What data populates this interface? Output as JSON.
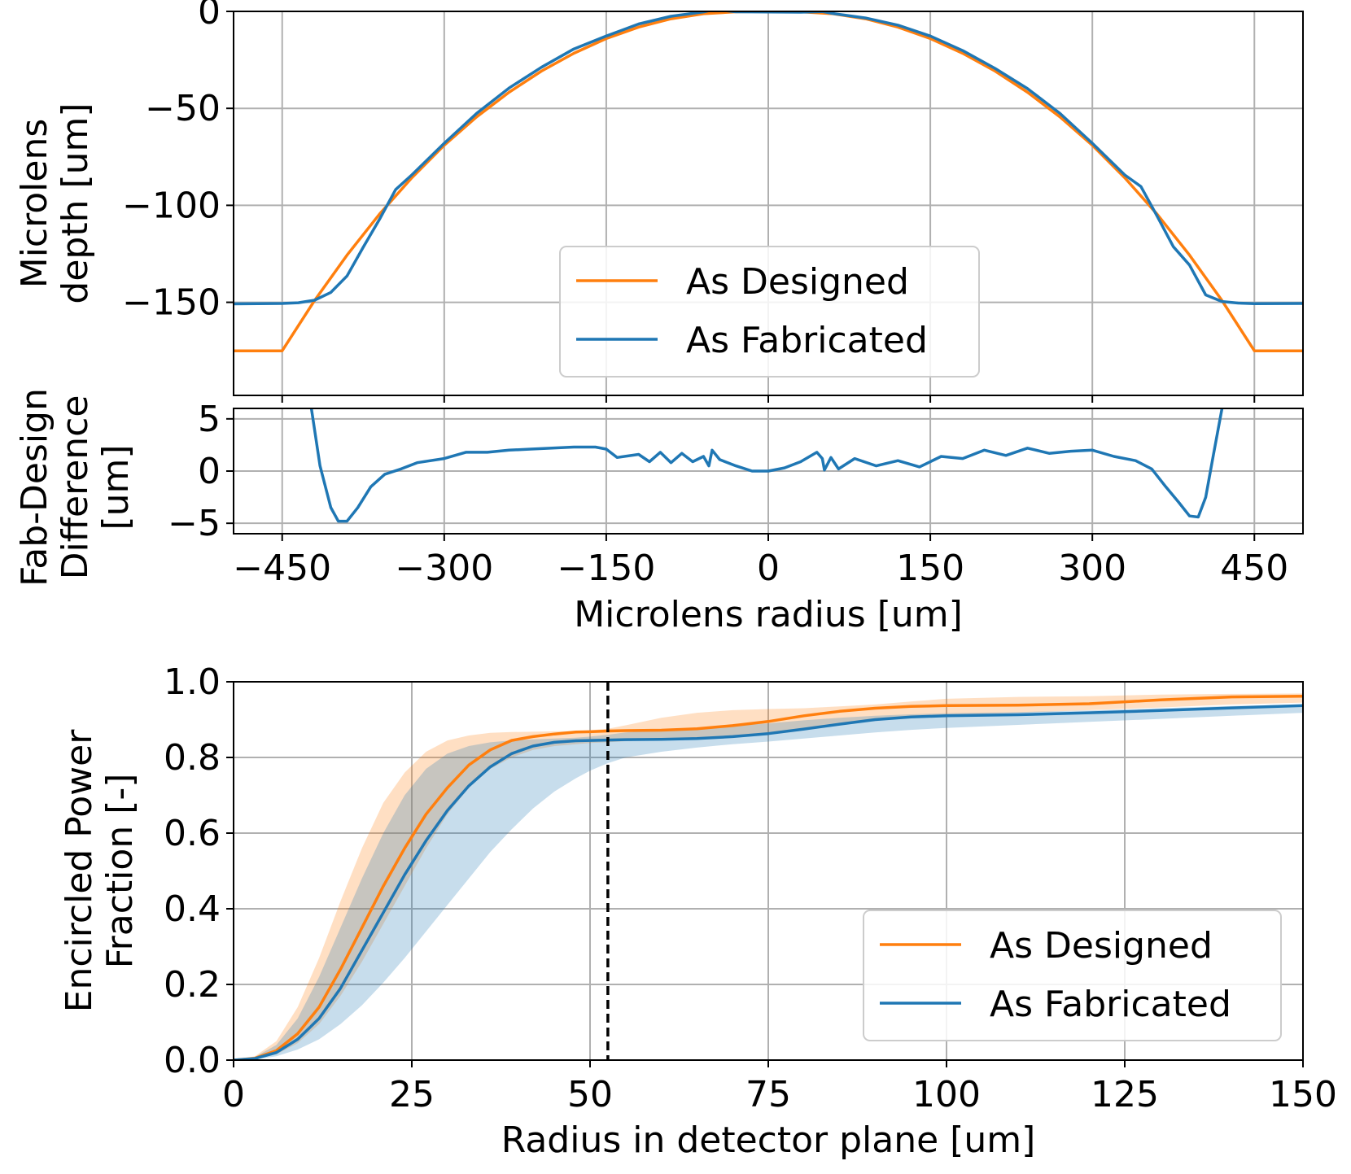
{
  "colors": {
    "designed": "#ff7f0e",
    "fabricated": "#1f77b4"
  },
  "chart_data": [
    {
      "type": "line",
      "panel": "top",
      "xlim": [
        -495,
        495
      ],
      "ylim": [
        -198,
        0
      ],
      "x_ticks": [
        -450,
        -300,
        -150,
        0,
        150,
        300,
        450
      ],
      "y_ticks": [
        0,
        -50,
        -100,
        -150
      ],
      "y_tick_labels": [
        "0",
        "−50",
        "−100",
        "−150"
      ],
      "ylabel_lines": [
        "Microlens",
        "depth [um]"
      ],
      "grid": true,
      "legend": {
        "placement": "lower-center",
        "entries": [
          "As Designed",
          "As Fabricated"
        ]
      },
      "series": [
        {
          "name": "As Designed",
          "color": "#ff7f0e",
          "x": [
            -495,
            -450,
            -420,
            -390,
            -360,
            -330,
            -300,
            -270,
            -240,
            -210,
            -180,
            -150,
            -120,
            -90,
            -60,
            -30,
            0,
            30,
            60,
            90,
            120,
            150,
            180,
            210,
            240,
            270,
            300,
            330,
            360,
            390,
            420,
            450,
            495
          ],
          "y": [
            -175,
            -175,
            -149.1,
            -125.7,
            -104.6,
            -85.8,
            -69,
            -54.4,
            -41.7,
            -30.8,
            -21.6,
            -14,
            -8.1,
            -3.8,
            -1.2,
            -0.2,
            0,
            -0.2,
            -1.2,
            -3.8,
            -8.1,
            -14,
            -21.6,
            -30.8,
            -41.7,
            -54.4,
            -69,
            -85.8,
            -104.6,
            -125.7,
            -149.1,
            -175,
            -175
          ]
        },
        {
          "name": "As Fabricated",
          "color": "#1f77b4",
          "x": [
            -495,
            -450,
            -435,
            -420,
            -405,
            -390,
            -375,
            -360,
            -345,
            -330,
            -300,
            -270,
            -240,
            -210,
            -180,
            -150,
            -120,
            -90,
            -60,
            -50,
            -30,
            0,
            30,
            50,
            60,
            90,
            120,
            150,
            180,
            210,
            240,
            270,
            300,
            330,
            345,
            360,
            375,
            390,
            405,
            420,
            435,
            450,
            495
          ],
          "y": [
            -150.8,
            -150.6,
            -150.2,
            -148.9,
            -144.9,
            -136.4,
            -121.6,
            -107.3,
            -91.9,
            -84.3,
            -68,
            -52.6,
            -39.5,
            -28.8,
            -19.4,
            -12.7,
            -6.5,
            -2.5,
            -0.3,
            1,
            -0.2,
            -0.3,
            -0.4,
            -0.1,
            -1.1,
            -3.4,
            -7.1,
            -12.7,
            -20.2,
            -29.4,
            -39.8,
            -52.6,
            -68,
            -84.3,
            -90.3,
            -105.6,
            -121.3,
            -130.8,
            -146.2,
            -149.6,
            -150.4,
            -150.7,
            -150.6
          ]
        }
      ]
    },
    {
      "type": "line",
      "panel": "middle",
      "xlim": [
        -495,
        495
      ],
      "ylim": [
        -6,
        6
      ],
      "x_ticks": [
        -450,
        -300,
        -150,
        0,
        150,
        300,
        450
      ],
      "x_tick_labels": [
        "−450",
        "−300",
        "−150",
        "0",
        "150",
        "300",
        "450"
      ],
      "y_ticks": [
        5,
        0,
        -5
      ],
      "y_tick_labels": [
        "5",
        "0",
        "−5"
      ],
      "xlabel": "Microlens radius [um]",
      "ylabel_lines": [
        "Fab-Design",
        "Difference",
        "[um]"
      ],
      "grid": true,
      "series": [
        {
          "name": "Fab-Design Difference",
          "color": "#1f77b4",
          "x": [
            -423,
            -415,
            -405,
            -398,
            -390,
            -380,
            -368,
            -355,
            -340,
            -325,
            -300,
            -280,
            -260,
            -240,
            -220,
            -200,
            -180,
            -160,
            -150,
            -140,
            -120,
            -110,
            -100,
            -90,
            -80,
            -70,
            -60,
            -55,
            -52,
            -45,
            -30,
            -15,
            0,
            15,
            30,
            45,
            50,
            52,
            58,
            65,
            80,
            100,
            120,
            140,
            160,
            180,
            200,
            220,
            240,
            260,
            280,
            300,
            320,
            340,
            355,
            368,
            380,
            390,
            398,
            405,
            412,
            420
          ],
          "y": [
            6,
            0.5,
            -3.5,
            -4.8,
            -4.8,
            -3.5,
            -1.5,
            -0.3,
            0.2,
            0.8,
            1.2,
            1.8,
            1.8,
            2,
            2.1,
            2.2,
            2.3,
            2.3,
            2.1,
            1.3,
            1.6,
            0.9,
            1.8,
            0.8,
            1.7,
            0.9,
            1.4,
            0.5,
            2,
            1.1,
            0.5,
            0,
            0,
            0.3,
            0.9,
            1.8,
            1.2,
            0.1,
            1.3,
            0.2,
            1.2,
            0.5,
            1,
            0.4,
            1.4,
            1.2,
            2,
            1.5,
            2.2,
            1.7,
            1.9,
            2,
            1.4,
            1,
            0.2,
            -1.5,
            -3,
            -4.3,
            -4.4,
            -2.5,
            1.5,
            6
          ]
        }
      ]
    },
    {
      "type": "line",
      "panel": "bottom",
      "xlim": [
        0,
        150
      ],
      "ylim": [
        0,
        1
      ],
      "x_ticks": [
        0,
        25,
        50,
        75,
        100,
        125,
        150
      ],
      "y_ticks": [
        0,
        0.2,
        0.4,
        0.6,
        0.8,
        1
      ],
      "y_tick_labels": [
        "0.0",
        "0.2",
        "0.4",
        "0.6",
        "0.8",
        "1.0"
      ],
      "xlabel": "Radius in detector plane [um]",
      "ylabel_lines": [
        "Encircled Power",
        "Fraction [-]"
      ],
      "grid": true,
      "vline_x": 52.5,
      "legend": {
        "placement": "lower-right",
        "entries": [
          "As Designed",
          "As Fabricated"
        ]
      },
      "series": [
        {
          "name": "As Designed",
          "color": "#ff7f0e",
          "x": [
            0,
            3,
            6,
            9,
            12,
            15,
            18,
            21,
            24,
            27,
            30,
            33,
            36,
            39,
            42,
            45,
            48,
            50,
            52.5,
            55,
            60,
            65,
            70,
            75,
            80,
            85,
            90,
            95,
            100,
            110,
            120,
            130,
            140,
            150
          ],
          "y": [
            0,
            0.005,
            0.025,
            0.07,
            0.14,
            0.24,
            0.35,
            0.46,
            0.56,
            0.65,
            0.72,
            0.78,
            0.82,
            0.845,
            0.855,
            0.862,
            0.867,
            0.868,
            0.87,
            0.871,
            0.872,
            0.876,
            0.884,
            0.895,
            0.91,
            0.922,
            0.93,
            0.935,
            0.937,
            0.938,
            0.942,
            0.952,
            0.96,
            0.962
          ]
        },
        {
          "name": "As Fabricated",
          "color": "#1f77b4",
          "x": [
            0,
            3,
            6,
            9,
            12,
            15,
            18,
            21,
            24,
            27,
            30,
            33,
            36,
            39,
            42,
            45,
            48,
            50,
            52.5,
            55,
            60,
            65,
            70,
            75,
            80,
            85,
            90,
            95,
            100,
            110,
            120,
            130,
            140,
            150
          ],
          "y": [
            0,
            0.004,
            0.02,
            0.055,
            0.11,
            0.19,
            0.29,
            0.39,
            0.49,
            0.58,
            0.66,
            0.725,
            0.775,
            0.81,
            0.83,
            0.84,
            0.844,
            0.845,
            0.846,
            0.847,
            0.848,
            0.85,
            0.855,
            0.863,
            0.875,
            0.888,
            0.9,
            0.907,
            0.91,
            0.913,
            0.918,
            0.924,
            0.931,
            0.937
          ]
        },
        {
          "name": "As Designed range",
          "color": "#ff7f0e",
          "x": [
            0,
            3,
            6,
            9,
            12,
            15,
            18,
            21,
            24,
            27,
            30,
            33,
            36,
            39,
            42,
            45,
            48,
            50,
            52.5,
            55,
            60,
            65,
            70,
            75,
            80,
            85,
            90,
            95,
            100,
            110,
            120,
            130,
            140,
            150
          ],
          "y_upper": [
            0,
            0.01,
            0.05,
            0.14,
            0.27,
            0.42,
            0.56,
            0.68,
            0.76,
            0.815,
            0.845,
            0.858,
            0.865,
            0.867,
            0.868,
            0.869,
            0.87,
            0.872,
            0.876,
            0.885,
            0.905,
            0.918,
            0.925,
            0.928,
            0.93,
            0.935,
            0.94,
            0.948,
            0.955,
            0.96,
            0.962,
            0.966,
            0.968,
            0.969
          ],
          "y_lower": [
            0,
            0.003,
            0.015,
            0.045,
            0.095,
            0.17,
            0.26,
            0.36,
            0.46,
            0.56,
            0.65,
            0.72,
            0.77,
            0.8,
            0.82,
            0.83,
            0.835,
            0.838,
            0.84,
            0.843,
            0.848,
            0.852,
            0.858,
            0.865,
            0.875,
            0.89,
            0.9,
            0.908,
            0.912,
            0.918,
            0.925,
            0.932,
            0.94,
            0.945
          ]
        },
        {
          "name": "As Fabricated range",
          "color": "#1f77b4",
          "x": [
            0,
            3,
            6,
            9,
            12,
            15,
            18,
            21,
            24,
            27,
            30,
            33,
            36,
            39,
            42,
            45,
            48,
            50,
            52.5,
            55,
            60,
            65,
            70,
            75,
            80,
            85,
            90,
            95,
            100,
            110,
            120,
            130,
            140,
            150
          ],
          "y_upper": [
            0,
            0.008,
            0.04,
            0.11,
            0.22,
            0.35,
            0.48,
            0.6,
            0.7,
            0.77,
            0.81,
            0.83,
            0.84,
            0.845,
            0.848,
            0.85,
            0.852,
            0.855,
            0.86,
            0.866,
            0.873,
            0.878,
            0.884,
            0.89,
            0.898,
            0.905,
            0.91,
            0.914,
            0.917,
            0.92,
            0.924,
            0.93,
            0.936,
            0.94
          ],
          "y_lower": [
            0,
            0.002,
            0.01,
            0.028,
            0.055,
            0.095,
            0.145,
            0.205,
            0.27,
            0.34,
            0.41,
            0.48,
            0.55,
            0.61,
            0.665,
            0.71,
            0.745,
            0.765,
            0.785,
            0.8,
            0.815,
            0.826,
            0.835,
            0.842,
            0.85,
            0.858,
            0.866,
            0.873,
            0.878,
            0.886,
            0.894,
            0.902,
            0.91,
            0.918
          ]
        }
      ]
    }
  ]
}
